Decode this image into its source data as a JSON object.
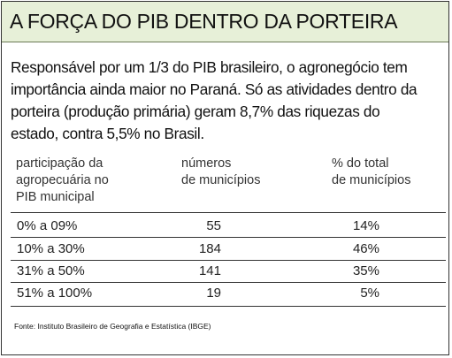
{
  "title": "A FORÇA DO PIB DENTRO DA PORTEIRA",
  "lead_lines": [
    "Responsável por um 1/3 do PIB brasileiro, o agronegócio tem",
    "importância ainda maior no Paraná. Só as atividades dentro da",
    "porteira (produção primária) geram 8,7% das riquezas do",
    "estado, contra 5,5% no Brasil."
  ],
  "table": {
    "headers": [
      [
        "participação da",
        "agropecuária no",
        "PIB municipal"
      ],
      [
        "números",
        "de municípios"
      ],
      [
        "% do total",
        "de municípios"
      ]
    ],
    "rows": [
      {
        "range": "0% a 09%",
        "count": "55",
        "percent": "14%"
      },
      {
        "range": "10% a 30%",
        "count": "184",
        "percent": "46%"
      },
      {
        "range": "31% a 50%",
        "count": "141",
        "percent": "35%"
      },
      {
        "range": "51% a 100%",
        "count": "19",
        "percent": "5%"
      }
    ]
  },
  "source": "Fonte: Instituto Brasileiro de Geografia e Estatística (IBGE)"
}
